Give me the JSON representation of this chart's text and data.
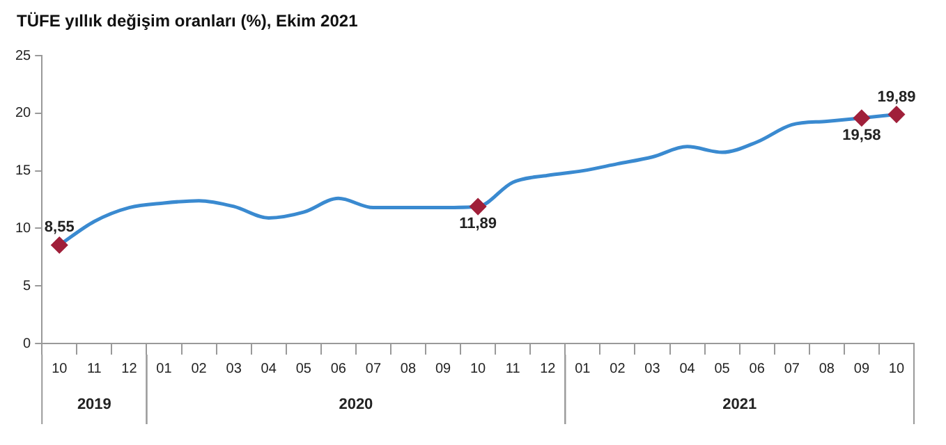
{
  "chart_data": {
    "type": "line",
    "title": "TÜFE yıllık değişim oranları (%), Ekim 2021",
    "categories": [
      "10",
      "11",
      "12",
      "01",
      "02",
      "03",
      "04",
      "05",
      "06",
      "07",
      "08",
      "09",
      "10",
      "11",
      "12",
      "01",
      "02",
      "03",
      "04",
      "05",
      "06",
      "07",
      "08",
      "09",
      "10"
    ],
    "series": [
      {
        "color": "#3a8ad0",
        "values": [
          8.55,
          10.6,
          11.8,
          12.2,
          12.4,
          11.9,
          10.9,
          11.4,
          12.6,
          11.8,
          11.8,
          11.8,
          11.89,
          14.0,
          14.6,
          15.0,
          15.6,
          16.2,
          17.1,
          16.6,
          17.5,
          19.0,
          19.3,
          19.58,
          19.89
        ],
        "value_labels": [
          "8,55",
          null,
          null,
          null,
          null,
          null,
          null,
          null,
          null,
          null,
          null,
          null,
          "11,89",
          null,
          null,
          null,
          null,
          null,
          null,
          null,
          null,
          null,
          null,
          "19,58",
          "19,89"
        ]
      }
    ],
    "annotations": [
      "2019",
      "2020",
      "2021"
    ],
    "ylim": [
      0,
      25
    ],
    "yticks": [
      0,
      5,
      10,
      15,
      20,
      25
    ],
    "grid": false,
    "legend": false,
    "line_style": "solid"
  }
}
